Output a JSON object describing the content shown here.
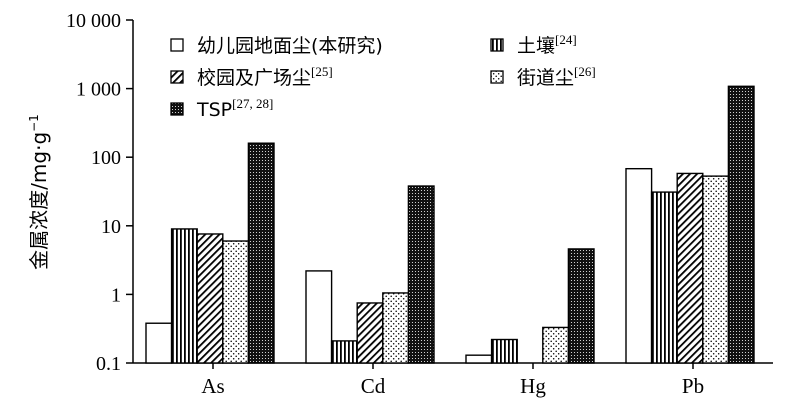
{
  "chart_data": {
    "type": "bar",
    "log_scale": true,
    "ylim": [
      0.1,
      10000
    ],
    "y_ticks": [
      {
        "value": 0.1,
        "label": "0.1"
      },
      {
        "value": 1,
        "label": "1"
      },
      {
        "value": 10,
        "label": "10"
      },
      {
        "value": 100,
        "label": "100"
      },
      {
        "value": 1000,
        "label": "1 000"
      },
      {
        "value": 10000,
        "label": "10 000"
      }
    ],
    "ylabel": "金属浓度/mg·g",
    "ylabel_sup": "−1",
    "categories": [
      "As",
      "Cd",
      "Hg",
      "Pb"
    ],
    "legend_position": "top",
    "series": [
      {
        "name": "幼儿园地面尘(本研究)",
        "ref": "",
        "pattern": "blank",
        "values": [
          0.38,
          2.2,
          0.13,
          68
        ]
      },
      {
        "name": "土壤",
        "ref": "[24]",
        "pattern": "vertical",
        "values": [
          9.0,
          0.21,
          0.22,
          31
        ]
      },
      {
        "name": "校园及广场尘",
        "ref": "[25]",
        "pattern": "diagonal",
        "values": [
          7.6,
          0.75,
          null,
          58
        ]
      },
      {
        "name": "街道尘",
        "ref": "[26]",
        "pattern": "sparse-dots",
        "values": [
          6.0,
          1.05,
          0.33,
          53
        ]
      },
      {
        "name": "TSP",
        "ref": "[27, 28]",
        "pattern": "dense-dots",
        "values": [
          160,
          38,
          4.6,
          1080
        ]
      }
    ]
  }
}
